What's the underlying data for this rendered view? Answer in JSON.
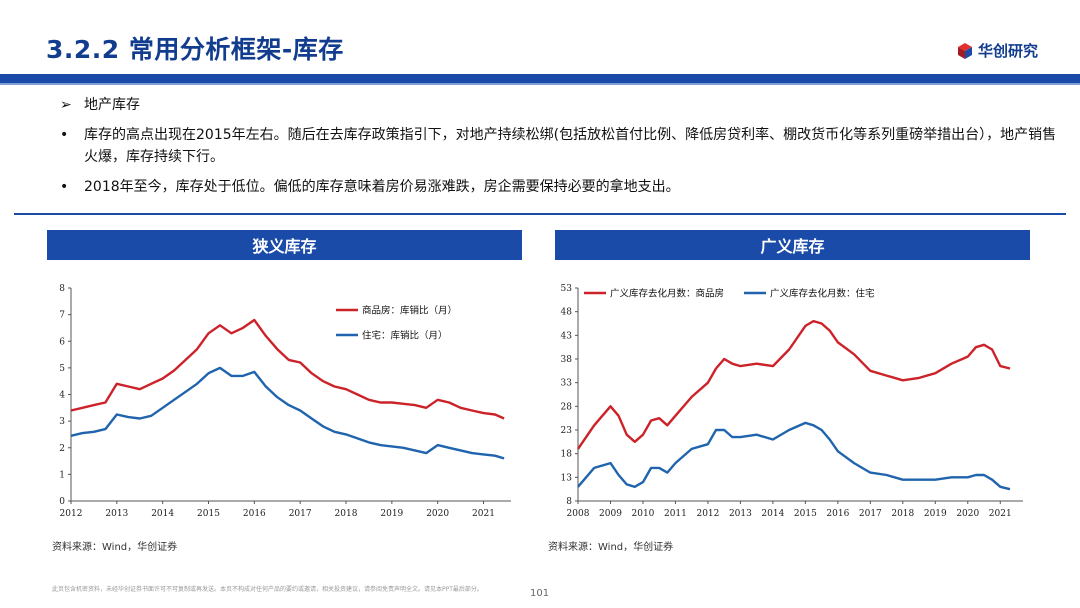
{
  "header": {
    "title": "3.2.2 常用分析框架-库存",
    "brand": "华创研究"
  },
  "bullets": [
    {
      "marker": "➢",
      "text": "地产库存"
    },
    {
      "marker": "•",
      "text": "库存的高点出现在2015年左右。随后在去库存政策指引下，对地产持续松绑(包括放松首付比例、降低房贷利率、棚改货币化等系列重磅举措出台），地产销售火爆，库存持续下行。"
    },
    {
      "marker": "•",
      "text": "2018年至今，库存处于低位。偏低的库存意味着房价易涨难跌，房企需要保持必要的拿地支出。"
    }
  ],
  "charts": [
    {
      "title": "狭义库存",
      "source": "资料来源：Wind，华创证券"
    },
    {
      "title": "广义库存",
      "source": "资料来源：Wind，华创证券"
    }
  ],
  "footer": {
    "disclaimer": "此页包含机密资料，未经华创证券书面许可不可复制或再发送。本页不构成对任何产品的要约或邀请，相关投资建议，请参阅免责声明全文。请见本PPT最后部分。",
    "page": "101"
  },
  "colors": {
    "red": "#cc2229",
    "blue": "#1f64ad",
    "brand": "#1a4ba8"
  },
  "chart_data": [
    {
      "type": "line",
      "title": "狭义库存",
      "x": [
        2012.0,
        2012.25,
        2012.5,
        2012.75,
        2013.0,
        2013.25,
        2013.5,
        2013.75,
        2014.0,
        2014.25,
        2014.5,
        2014.75,
        2015.0,
        2015.25,
        2015.5,
        2015.75,
        2016.0,
        2016.25,
        2016.5,
        2016.75,
        2017.0,
        2017.25,
        2017.5,
        2017.75,
        2018.0,
        2018.25,
        2018.5,
        2018.75,
        2019.0,
        2019.25,
        2019.5,
        2019.75,
        2020.0,
        2020.25,
        2020.5,
        2020.75,
        2021.0,
        2021.25,
        2021.45
      ],
      "series": [
        {
          "name": "商品房：库销比（月）",
          "color": "#cc2229",
          "values": [
            3.4,
            3.5,
            3.6,
            3.7,
            4.4,
            4.3,
            4.2,
            4.4,
            4.6,
            4.9,
            5.3,
            5.7,
            6.3,
            6.6,
            6.3,
            6.5,
            6.8,
            6.2,
            5.7,
            5.3,
            5.2,
            4.8,
            4.5,
            4.3,
            4.2,
            4.0,
            3.8,
            3.7,
            3.7,
            3.65,
            3.6,
            3.5,
            3.8,
            3.7,
            3.5,
            3.4,
            3.3,
            3.25,
            3.1
          ]
        },
        {
          "name": "住宅：库销比（月）",
          "color": "#1f64ad",
          "values": [
            2.45,
            2.55,
            2.6,
            2.7,
            3.25,
            3.15,
            3.1,
            3.2,
            3.5,
            3.8,
            4.1,
            4.4,
            4.8,
            5.0,
            4.7,
            4.7,
            4.85,
            4.3,
            3.9,
            3.6,
            3.4,
            3.1,
            2.8,
            2.6,
            2.5,
            2.35,
            2.2,
            2.1,
            2.05,
            2.0,
            1.9,
            1.8,
            2.1,
            2.0,
            1.9,
            1.8,
            1.75,
            1.7,
            1.6
          ]
        }
      ],
      "xlim": [
        2012,
        2021.6
      ],
      "xticks": [
        "2012",
        "2013",
        "2014",
        "2015",
        "2016",
        "2017",
        "2018",
        "2019",
        "2020",
        "2021"
      ],
      "ylim": [
        0,
        8
      ],
      "yticks": [
        0,
        1,
        2,
        3,
        4,
        5,
        6,
        7,
        8
      ],
      "legend": "top-right"
    },
    {
      "type": "line",
      "title": "广义库存",
      "x": [
        2008.0,
        2008.5,
        2009.0,
        2009.25,
        2009.5,
        2009.75,
        2010.0,
        2010.25,
        2010.5,
        2010.75,
        2011.0,
        2011.5,
        2012.0,
        2012.25,
        2012.5,
        2012.75,
        2013.0,
        2013.5,
        2014.0,
        2014.5,
        2015.0,
        2015.25,
        2015.5,
        2015.75,
        2016.0,
        2016.5,
        2017.0,
        2017.5,
        2018.0,
        2018.5,
        2019.0,
        2019.5,
        2020.0,
        2020.25,
        2020.5,
        2020.75,
        2021.0,
        2021.3
      ],
      "series": [
        {
          "name": "广义库存去化月数：商品房",
          "color": "#cc2229",
          "values": [
            19,
            24,
            28,
            26,
            22,
            20.5,
            22,
            25,
            25.5,
            24,
            26,
            30,
            33,
            36,
            38,
            37,
            36.5,
            37,
            36.5,
            40,
            45,
            46,
            45.5,
            44,
            41.5,
            39,
            35.5,
            34.5,
            33.5,
            34,
            35,
            37,
            38.5,
            40.5,
            41,
            40,
            36.5,
            36
          ]
        },
        {
          "name": "广义库存去化月数：住宅",
          "color": "#1f64ad",
          "values": [
            11,
            15,
            16,
            13.5,
            11.5,
            11,
            12,
            15,
            15,
            14,
            16,
            19,
            20,
            23,
            23,
            21.5,
            21.5,
            22,
            21,
            23,
            24.5,
            24,
            23,
            21,
            18.5,
            16,
            14,
            13.5,
            12.5,
            12.5,
            12.5,
            13,
            13,
            13.5,
            13.5,
            12.5,
            11,
            10.5
          ]
        }
      ],
      "xlim": [
        2008,
        2021.7
      ],
      "xticks": [
        "2008",
        "2009",
        "2010",
        "2011",
        "2012",
        "2013",
        "2014",
        "2015",
        "2016",
        "2017",
        "2018",
        "2019",
        "2020",
        "2021"
      ],
      "ylim": [
        8,
        53
      ],
      "yticks": [
        8,
        13,
        18,
        23,
        28,
        33,
        38,
        43,
        48,
        53
      ],
      "legend": "top-left"
    }
  ]
}
